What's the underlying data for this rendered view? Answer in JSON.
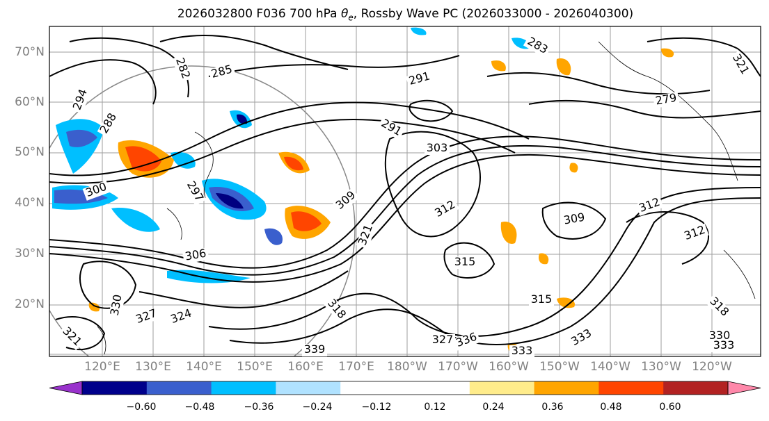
{
  "title": "2026032800 F036 700 hPa θe, Rossby Wave PC (2026033000 - 2026040300)",
  "map": {
    "lat_labels": [
      "70°N",
      "60°N",
      "50°N",
      "40°N",
      "30°N",
      "20°N"
    ],
    "lon_labels": [
      "120°E",
      "130°E",
      "140°E",
      "150°E",
      "160°E",
      "170°E",
      "180°W",
      "170°W",
      "160°W",
      "150°W",
      "140°W",
      "130°W",
      "120°W"
    ],
    "contour_labels": [
      "294",
      "282",
      "285",
      "283",
      "279",
      "291",
      "291",
      "288",
      "300",
      "303",
      "297",
      "306",
      "309",
      "312",
      "312",
      "309",
      "312",
      "315",
      "318",
      "321",
      "324",
      "327",
      "330",
      "321",
      "327",
      "336",
      "333",
      "333",
      "330",
      "339",
      "333",
      "318",
      "315",
      "321"
    ],
    "fill_colors": {
      "neg": "#00bfff",
      "neg2": "#3a5fcd",
      "neg3": "#000080",
      "pos": "#ffa500",
      "pos2": "#ff4500",
      "pos3": "#ffec8b"
    },
    "grid_color": "#9e9e9e",
    "coastline_color": "#000000"
  },
  "colorbar": {
    "colors": [
      "#9932cc",
      "#00008b",
      "#3a5fcd",
      "#00bfff",
      "#b0e2ff",
      "#ffffff",
      "#ffffff",
      "#ffec8b",
      "#ffa500",
      "#ff4500",
      "#b22222",
      "#ff88aa"
    ],
    "tick_labels": [
      "−0.60",
      "−0.48",
      "−0.36",
      "−0.24",
      "−0.12",
      "0.12",
      "0.24",
      "0.36",
      "0.48",
      "0.60"
    ]
  }
}
